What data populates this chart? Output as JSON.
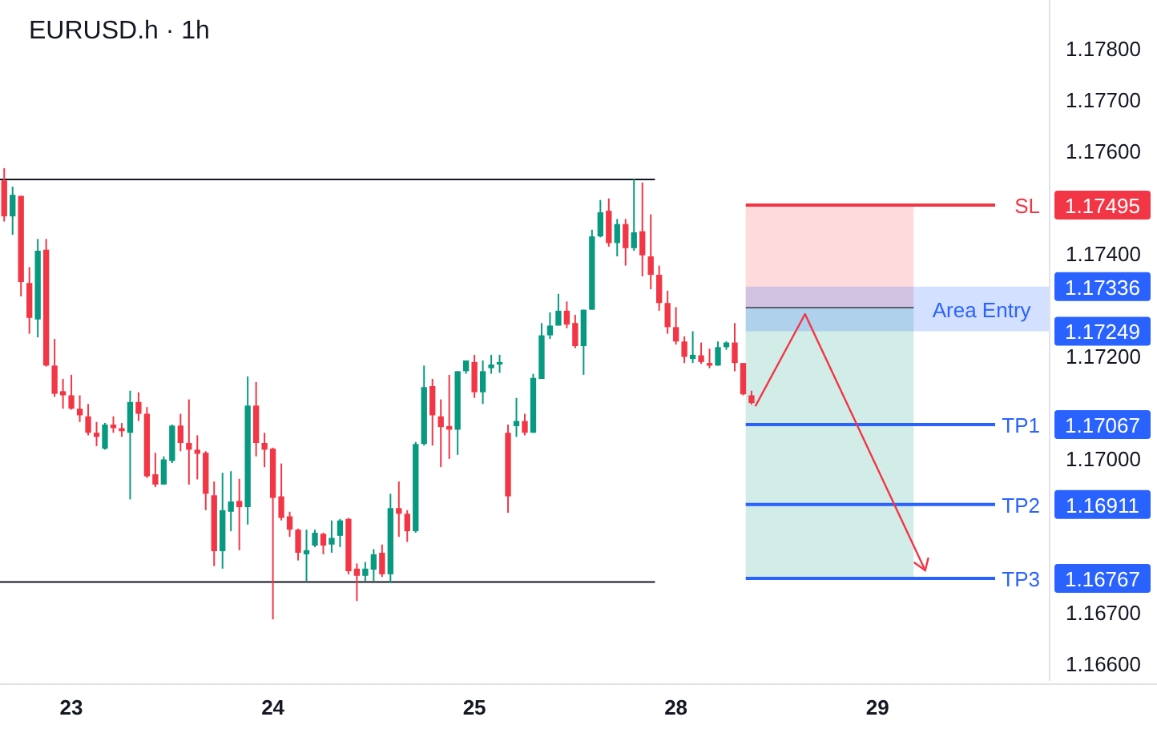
{
  "chart_data": {
    "type": "candlestick",
    "title": "EURUSD.h · 1h",
    "categories": [
      null,
      null,
      null,
      null,
      null,
      null,
      null,
      null,
      "23",
      null,
      null,
      null,
      null,
      null,
      null,
      null,
      null,
      null,
      null,
      null,
      null,
      null,
      null,
      null,
      null,
      null,
      null,
      null,
      null,
      null,
      null,
      null,
      "24",
      null,
      null,
      null,
      null,
      null,
      null,
      null,
      null,
      null,
      null,
      null,
      null,
      null,
      null,
      null,
      null,
      null,
      null,
      null,
      null,
      null,
      null,
      null,
      "25",
      null,
      null,
      null,
      null,
      null,
      null,
      null,
      null,
      null,
      null,
      null,
      null,
      null,
      null,
      null,
      null,
      null,
      null,
      null,
      null,
      null,
      null,
      null,
      "28",
      null,
      null,
      null,
      null,
      null,
      null,
      null,
      null,
      null,
      null,
      null,
      null,
      null,
      null,
      null,
      null,
      null,
      null,
      null,
      null,
      null,
      null,
      null,
      "29",
      null,
      null,
      null,
      null,
      null,
      null,
      null,
      null,
      null,
      null,
      null,
      null,
      null,
      null,
      null,
      null,
      null,
      null,
      null,
      null
    ],
    "ohlc": [
      [
        1.17543,
        1.17567,
        1.17463,
        1.17473
      ],
      [
        1.17473,
        1.17531,
        1.17437,
        1.17515
      ],
      [
        1.17513,
        1.17513,
        1.17317,
        1.17345
      ],
      [
        1.17343,
        1.17374,
        1.17244,
        1.17275
      ],
      [
        1.17272,
        1.17429,
        1.17237,
        1.17406
      ],
      [
        1.17408,
        1.17429,
        1.1718,
        1.17182
      ],
      [
        1.17182,
        1.17234,
        1.17121,
        1.17127
      ],
      [
        1.17132,
        1.17156,
        1.17098,
        1.17124
      ],
      [
        1.17124,
        1.17164,
        1.17096,
        1.17098
      ],
      [
        1.17098,
        1.17124,
        1.17072,
        1.17085
      ],
      [
        1.17083,
        1.17107,
        1.17046,
        1.17051
      ],
      [
        1.17051,
        1.17072,
        1.17025,
        1.17043
      ],
      [
        1.1702,
        1.1707,
        1.17018,
        1.17067
      ],
      [
        1.17067,
        1.17083,
        1.17051,
        1.1706
      ],
      [
        1.1706,
        1.1707,
        1.17043,
        1.17054
      ],
      [
        1.17051,
        1.17133,
        1.16921,
        1.17111
      ],
      [
        1.17111,
        1.1713,
        1.17074,
        1.17088
      ],
      [
        1.17088,
        1.17101,
        1.16963,
        1.16966
      ],
      [
        1.1697,
        1.17012,
        1.16945,
        1.1695
      ],
      [
        1.1695,
        1.17005,
        1.1695,
        1.16999
      ],
      [
        1.16996,
        1.17067,
        1.16992,
        1.17065
      ],
      [
        1.17065,
        1.17088,
        1.17015,
        1.17031
      ],
      [
        1.17031,
        1.17116,
        1.1695,
        1.17018
      ],
      [
        1.17018,
        1.17046,
        1.1696,
        1.1701
      ],
      [
        1.17012,
        1.17015,
        1.169,
        1.16932
      ],
      [
        1.16929,
        1.16956,
        1.16791,
        1.1682
      ],
      [
        1.1682,
        1.16973,
        1.16786,
        1.169
      ],
      [
        1.16897,
        1.16976,
        1.16859,
        1.16917
      ],
      [
        1.16918,
        1.16961,
        1.16822,
        1.16906
      ],
      [
        1.16906,
        1.17161,
        1.16872,
        1.17104
      ],
      [
        1.17104,
        1.1715,
        1.17005,
        1.17031
      ],
      [
        1.17031,
        1.17051,
        1.16984,
        1.17018
      ],
      [
        1.1702,
        1.17022,
        1.16687,
        1.16924
      ],
      [
        1.16927,
        1.16991,
        1.1688,
        1.16885
      ],
      [
        1.16888,
        1.16897,
        1.16848,
        1.16862
      ],
      [
        1.16862,
        1.16864,
        1.16802,
        1.16817
      ],
      [
        1.16814,
        1.16862,
        1.16762,
        1.16822
      ],
      [
        1.16831,
        1.16862,
        1.16828,
        1.16856
      ],
      [
        1.16854,
        1.16856,
        1.16814,
        1.16831
      ],
      [
        1.16833,
        1.1688,
        1.16817,
        1.16846
      ],
      [
        1.1685,
        1.16883,
        1.16828,
        1.1688
      ],
      [
        1.16883,
        1.16885,
        1.16775,
        1.16781
      ],
      [
        1.16786,
        1.16796,
        1.16723,
        1.16772
      ],
      [
        1.16772,
        1.16799,
        1.16762,
        1.16786
      ],
      [
        1.16784,
        1.16824,
        1.16762,
        1.16814
      ],
      [
        1.16817,
        1.16833,
        1.1677,
        1.16775
      ],
      [
        1.16775,
        1.16932,
        1.16758,
        1.16904
      ],
      [
        1.16904,
        1.16956,
        1.16848,
        1.16893
      ],
      [
        1.16893,
        1.169,
        1.16838,
        1.16859
      ],
      [
        1.16859,
        1.17033,
        1.16856,
        1.17029
      ],
      [
        1.17029,
        1.17182,
        1.17026,
        1.1714
      ],
      [
        1.17142,
        1.17156,
        1.17026,
        1.17085
      ],
      [
        1.17083,
        1.17116,
        1.16984,
        1.17062
      ],
      [
        1.17064,
        1.17164,
        1.17,
        1.17057
      ],
      [
        1.17057,
        1.17171,
        1.17008,
        1.17171
      ],
      [
        1.17171,
        1.17192,
        1.17166,
        1.17192
      ],
      [
        1.17189,
        1.17203,
        1.17119,
        1.1713
      ],
      [
        1.1713,
        1.17192,
        1.17107,
        1.17171
      ],
      [
        1.17177,
        1.17203,
        1.17166,
        1.17184
      ],
      [
        1.17184,
        1.17203,
        1.17168,
        1.17189
      ],
      [
        1.17051,
        1.17067,
        1.16895,
        1.16927
      ],
      [
        1.17064,
        1.17119,
        1.17043,
        1.17074
      ],
      [
        1.17074,
        1.17088,
        1.17046,
        1.17051
      ],
      [
        1.17051,
        1.17166,
        1.17051,
        1.17158
      ],
      [
        1.17156,
        1.17265,
        1.17156,
        1.17241
      ],
      [
        1.17241,
        1.17286,
        1.17234,
        1.1726
      ],
      [
        1.1726,
        1.17322,
        1.1726,
        1.17289
      ],
      [
        1.17289,
        1.17307,
        1.17255,
        1.17262
      ],
      [
        1.17265,
        1.17281,
        1.17216,
        1.1722
      ],
      [
        1.1722,
        1.17291,
        1.17164,
        1.17291
      ],
      [
        1.17291,
        1.17447,
        1.17291,
        1.17434
      ],
      [
        1.17434,
        1.17505,
        1.17432,
        1.17481
      ],
      [
        1.17484,
        1.17508,
        1.17414,
        1.17421
      ],
      [
        1.17421,
        1.17468,
        1.17395,
        1.17458
      ],
      [
        1.17458,
        1.17468,
        1.17377,
        1.17411
      ],
      [
        1.17411,
        1.17546,
        1.17406,
        1.17442
      ],
      [
        1.17444,
        1.17539,
        1.17356,
        1.17397
      ],
      [
        1.17395,
        1.17477,
        1.17331,
        1.17359
      ],
      [
        1.17359,
        1.17377,
        1.17289,
        1.17304
      ],
      [
        1.17304,
        1.17328,
        1.17244,
        1.17257
      ],
      [
        1.17257,
        1.17296,
        1.17223,
        1.17229
      ],
      [
        1.17229,
        1.17239,
        1.17187,
        1.17199
      ],
      [
        1.17195,
        1.17249,
        1.17187,
        1.17203
      ],
      [
        1.17202,
        1.17227,
        1.17185,
        1.17189
      ],
      [
        1.17187,
        1.17215,
        1.17177,
        1.17182
      ],
      [
        1.17182,
        1.17229,
        1.17182,
        1.17218
      ],
      [
        1.17218,
        1.17229,
        1.17213,
        1.17227
      ],
      [
        1.17227,
        1.17265,
        1.17171,
        1.17187
      ],
      [
        1.17187,
        1.17187,
        1.17124,
        1.17126
      ],
      [
        1.17124,
        1.17133,
        1.17106,
        1.17109
      ],
      null,
      null,
      null,
      null,
      null,
      null,
      null,
      null,
      null,
      null,
      null,
      null,
      null,
      null,
      null,
      null,
      null,
      null,
      null,
      null,
      null,
      null,
      null,
      null,
      null,
      null,
      null,
      null,
      null,
      null,
      null,
      null,
      null,
      null,
      null
    ],
    "ylim": [
      1.16567,
      1.17895
    ],
    "yticks": [
      {
        "value": 1.178,
        "label": "1.17800"
      },
      {
        "value": 1.177,
        "label": "1.17700"
      },
      {
        "value": 1.176,
        "label": "1.17600"
      },
      {
        "value": 1.174,
        "label": "1.17400"
      },
      {
        "value": 1.172,
        "label": "1.17200"
      },
      {
        "value": 1.17,
        "label": "1.17000"
      },
      {
        "value": 1.167,
        "label": "1.16700"
      },
      {
        "value": 1.166,
        "label": "1.16600"
      }
    ],
    "ref_lines": [
      {
        "axis": "y",
        "value": 1.17545,
        "color": "#131722"
      },
      {
        "axis": "y",
        "value": 1.1676,
        "color": "#131722"
      },
      {
        "axis": "y",
        "value": 1.17495,
        "label": "SL",
        "color": "#f23645"
      },
      {
        "axis": "y",
        "value": 1.17067,
        "label": "TP1",
        "color": "#2962ff"
      },
      {
        "axis": "y",
        "value": 1.16911,
        "label": "TP2",
        "color": "#2962ff"
      },
      {
        "axis": "y",
        "value": 1.16767,
        "label": "TP3",
        "color": "#2962ff"
      }
    ],
    "bands": [
      {
        "axis": "y",
        "from": 1.17295,
        "to": 1.17495,
        "color": "#f23645"
      },
      {
        "axis": "y",
        "from": 1.16767,
        "to": 1.17295,
        "color": "#089981"
      },
      {
        "axis": "y",
        "from": 1.17249,
        "to": 1.17336,
        "label": "Area Entry",
        "color": "#2962ff"
      }
    ],
    "annotations": [
      "1.17495",
      "1.17336",
      "1.17249",
      "1.17067",
      "1.16911",
      "1.16767"
    ],
    "grid": false
  }
}
